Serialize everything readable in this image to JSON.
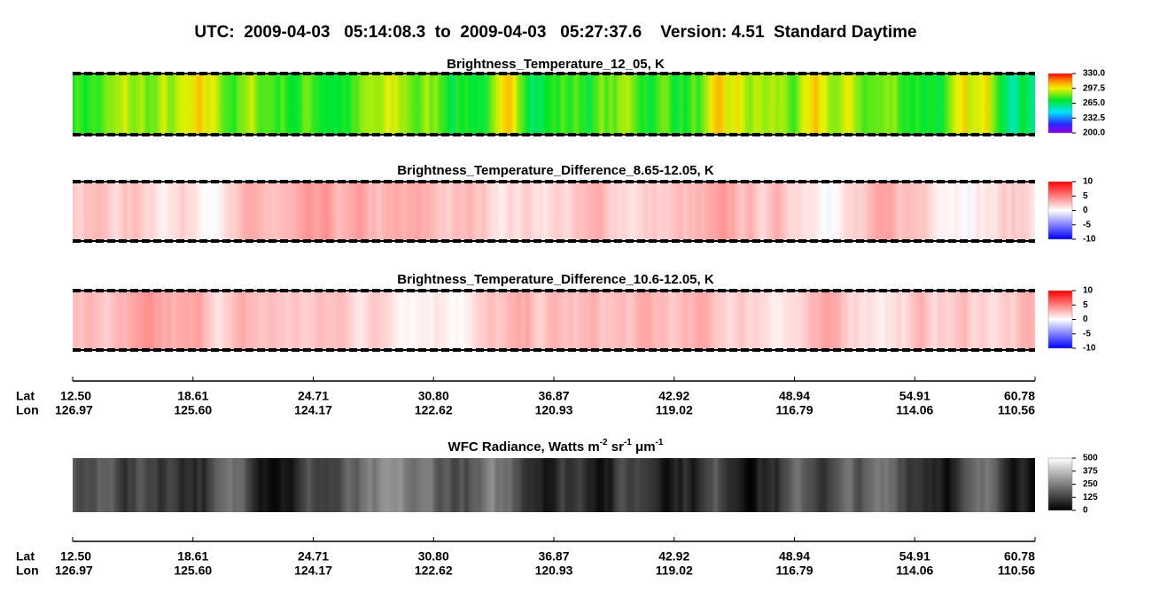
{
  "title": "UTC:  2009-04-03   05:14:08.3  to  2009-04-03   05:27:37.6    Version: 4.51  Standard Daytime",
  "chart_data": [
    {
      "type": "image-strip",
      "title": "Brightness_Temperature_12_05, K",
      "colormap": "rainbow",
      "clim": [
        200,
        330
      ],
      "cticks": [
        {
          "value": 330,
          "label": "330.0"
        },
        297.5,
        {
          "value": 265,
          "label": "265.0"
        },
        232.5,
        {
          "value": 200,
          "label": "200.0"
        }
      ]
    },
    {
      "type": "image-strip",
      "title": "Brightness_Temperature_Difference_8.65-12.05, K",
      "colormap": "bwr",
      "clim": [
        -10,
        10
      ],
      "cticks": [
        10,
        5,
        0,
        -5,
        -10
      ]
    },
    {
      "type": "image-strip",
      "title": "Brightness_Temperature_Difference_10.6-12.05, K",
      "colormap": "bwr",
      "clim": [
        -10,
        10
      ],
      "cticks": [
        10,
        5,
        0,
        -5,
        -10
      ]
    },
    {
      "type": "image-strip",
      "title": [
        "WFC Radiance, Watts m",
        "-2",
        " sr",
        "-1",
        " μm",
        "-1"
      ],
      "colormap": "gray",
      "clim": [
        0,
        500
      ],
      "cticks": [
        500,
        375,
        250,
        125,
        0
      ]
    }
  ],
  "axes": [
    {
      "lat_label": "Lat",
      "lon_label": "Lon",
      "lat": [
        {
          "value": 12.5,
          "label": "12.50"
        },
        18.61,
        24.71,
        {
          "value": 30.8,
          "label": "30.80"
        },
        36.87,
        42.92,
        48.94,
        54.91,
        60.78
      ],
      "lon": [
        126.97,
        {
          "value": 125.6,
          "label": "125.60"
        },
        124.17,
        122.62,
        120.93,
        119.02,
        116.79,
        114.06,
        110.56
      ]
    },
    {
      "lat_label": "Lat",
      "lon_label": "Lon",
      "lat": [
        {
          "value": 12.5,
          "label": "12.50"
        },
        18.61,
        24.71,
        {
          "value": 30.8,
          "label": "30.80"
        },
        36.87,
        42.92,
        48.94,
        54.91,
        60.78
      ],
      "lon": [
        126.97,
        {
          "value": 125.6,
          "label": "125.60"
        },
        124.17,
        122.62,
        120.93,
        119.02,
        116.79,
        114.06,
        110.56
      ]
    }
  ]
}
